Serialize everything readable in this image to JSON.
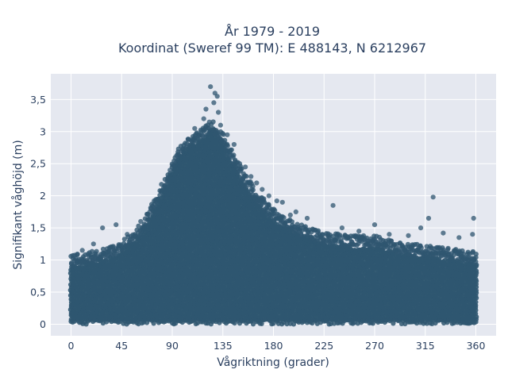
{
  "chart_data": {
    "type": "scatter",
    "title_line1": "År 1979 - 2019",
    "title_line2": "Koordinat (Sweref 99 TM): E 488143, N 6212967",
    "xlabel": "Vågriktning (grader)",
    "ylabel": "Signifikant våghöjd (m)",
    "xlim": [
      -18,
      378
    ],
    "ylim": [
      -0.18,
      3.9
    ],
    "x_ticks": [
      0,
      45,
      90,
      135,
      180,
      225,
      270,
      315,
      360
    ],
    "x_tick_labels": [
      "0",
      "45",
      "90",
      "135",
      "180",
      "225",
      "270",
      "315",
      "360"
    ],
    "y_ticks": [
      0,
      0.5,
      1,
      1.5,
      2,
      2.5,
      3,
      3.5
    ],
    "y_tick_labels": [
      "0",
      "0,5",
      "1",
      "1,5",
      "2",
      "2,5",
      "3",
      "3,5"
    ],
    "grid": true,
    "marker_color": "#2f5670",
    "plot_background": "#e5e8f0",
    "upper_envelope": [
      [
        0,
        0.95
      ],
      [
        15,
        1.0
      ],
      [
        30,
        1.05
      ],
      [
        45,
        1.15
      ],
      [
        55,
        1.3
      ],
      [
        65,
        1.5
      ],
      [
        75,
        1.85
      ],
      [
        85,
        2.2
      ],
      [
        95,
        2.6
      ],
      [
        105,
        2.8
      ],
      [
        115,
        2.9
      ],
      [
        125,
        3.05
      ],
      [
        135,
        2.85
      ],
      [
        145,
        2.5
      ],
      [
        155,
        2.2
      ],
      [
        165,
        1.95
      ],
      [
        175,
        1.75
      ],
      [
        185,
        1.6
      ],
      [
        200,
        1.45
      ],
      [
        225,
        1.3
      ],
      [
        250,
        1.25
      ],
      [
        270,
        1.25
      ],
      [
        290,
        1.15
      ],
      [
        315,
        1.1
      ],
      [
        340,
        1.05
      ],
      [
        360,
        1.0
      ]
    ],
    "outliers": [
      [
        124,
        3.7
      ],
      [
        128,
        3.6
      ],
      [
        130,
        3.55
      ],
      [
        127,
        3.45
      ],
      [
        120,
        3.35
      ],
      [
        131,
        3.3
      ],
      [
        118,
        3.2
      ],
      [
        123,
        3.15
      ],
      [
        133,
        3.1
      ],
      [
        110,
        3.05
      ],
      [
        139,
        2.95
      ],
      [
        145,
        2.8
      ],
      [
        150,
        2.5
      ],
      [
        155,
        2.45
      ],
      [
        160,
        2.3
      ],
      [
        165,
        2.2
      ],
      [
        170,
        2.1
      ],
      [
        176,
        2.0
      ],
      [
        183,
        1.92
      ],
      [
        188,
        1.9
      ],
      [
        195,
        1.7
      ],
      [
        200,
        1.75
      ],
      [
        210,
        1.65
      ],
      [
        233,
        1.85
      ],
      [
        241,
        1.5
      ],
      [
        256,
        1.45
      ],
      [
        270,
        1.55
      ],
      [
        283,
        1.4
      ],
      [
        300,
        1.38
      ],
      [
        311,
        1.5
      ],
      [
        318,
        1.65
      ],
      [
        322,
        1.98
      ],
      [
        331,
        1.42
      ],
      [
        345,
        1.35
      ],
      [
        357,
        1.4
      ],
      [
        358,
        1.65
      ],
      [
        40,
        1.55
      ],
      [
        28,
        1.5
      ],
      [
        62,
        1.6
      ],
      [
        70,
        1.75
      ],
      [
        88,
        2.4
      ],
      [
        95,
        2.65
      ],
      [
        10,
        1.15
      ],
      [
        20,
        1.25
      ],
      [
        50,
        1.4
      ]
    ]
  }
}
